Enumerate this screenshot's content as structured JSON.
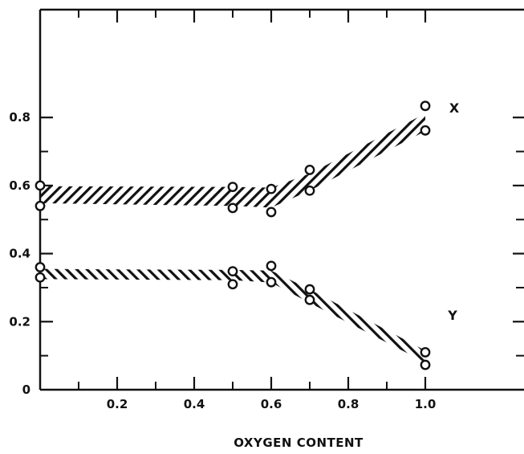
{
  "chart_data": {
    "type": "scatter",
    "title": "",
    "xlabel": "OXYGEN CONTENT",
    "ylabel": "",
    "xlim": [
      0,
      1.05
    ],
    "ylim": [
      0,
      0.88
    ],
    "x_ticks": [
      "0.2",
      "0.4",
      "0.6",
      "0.8",
      "1.0"
    ],
    "y_ticks": [
      "0",
      "0.2",
      "0.4",
      "0.6",
      "0.8"
    ],
    "grid": false,
    "series": [
      {
        "name": "X",
        "points": [
          {
            "x": 0.0,
            "y": 0.6
          },
          {
            "x": 0.0,
            "y": 0.54
          },
          {
            "x": 0.5,
            "y": 0.596
          },
          {
            "x": 0.5,
            "y": 0.534
          },
          {
            "x": 0.6,
            "y": 0.59
          },
          {
            "x": 0.6,
            "y": 0.522
          },
          {
            "x": 0.7,
            "y": 0.646
          },
          {
            "x": 0.7,
            "y": 0.585
          },
          {
            "x": 1.0,
            "y": 0.834
          },
          {
            "x": 1.0,
            "y": 0.762
          }
        ],
        "band": {
          "x": [
            0.0,
            0.5,
            0.6,
            0.7,
            1.0
          ],
          "upper": [
            0.598,
            0.596,
            0.594,
            0.635,
            0.812
          ],
          "lower": [
            0.548,
            0.54,
            0.535,
            0.585,
            0.76
          ]
        }
      },
      {
        "name": "Y",
        "points": [
          {
            "x": 0.0,
            "y": 0.36
          },
          {
            "x": 0.0,
            "y": 0.33
          },
          {
            "x": 0.5,
            "y": 0.348
          },
          {
            "x": 0.5,
            "y": 0.31
          },
          {
            "x": 0.6,
            "y": 0.364
          },
          {
            "x": 0.6,
            "y": 0.316
          },
          {
            "x": 0.7,
            "y": 0.295
          },
          {
            "x": 0.7,
            "y": 0.264
          },
          {
            "x": 1.0,
            "y": 0.11
          },
          {
            "x": 1.0,
            "y": 0.073
          }
        ],
        "band": {
          "x": [
            0.0,
            0.5,
            0.6,
            0.7,
            1.0
          ],
          "upper": [
            0.355,
            0.352,
            0.35,
            0.295,
            0.115
          ],
          "lower": [
            0.325,
            0.322,
            0.315,
            0.255,
            0.08
          ]
        }
      }
    ]
  }
}
